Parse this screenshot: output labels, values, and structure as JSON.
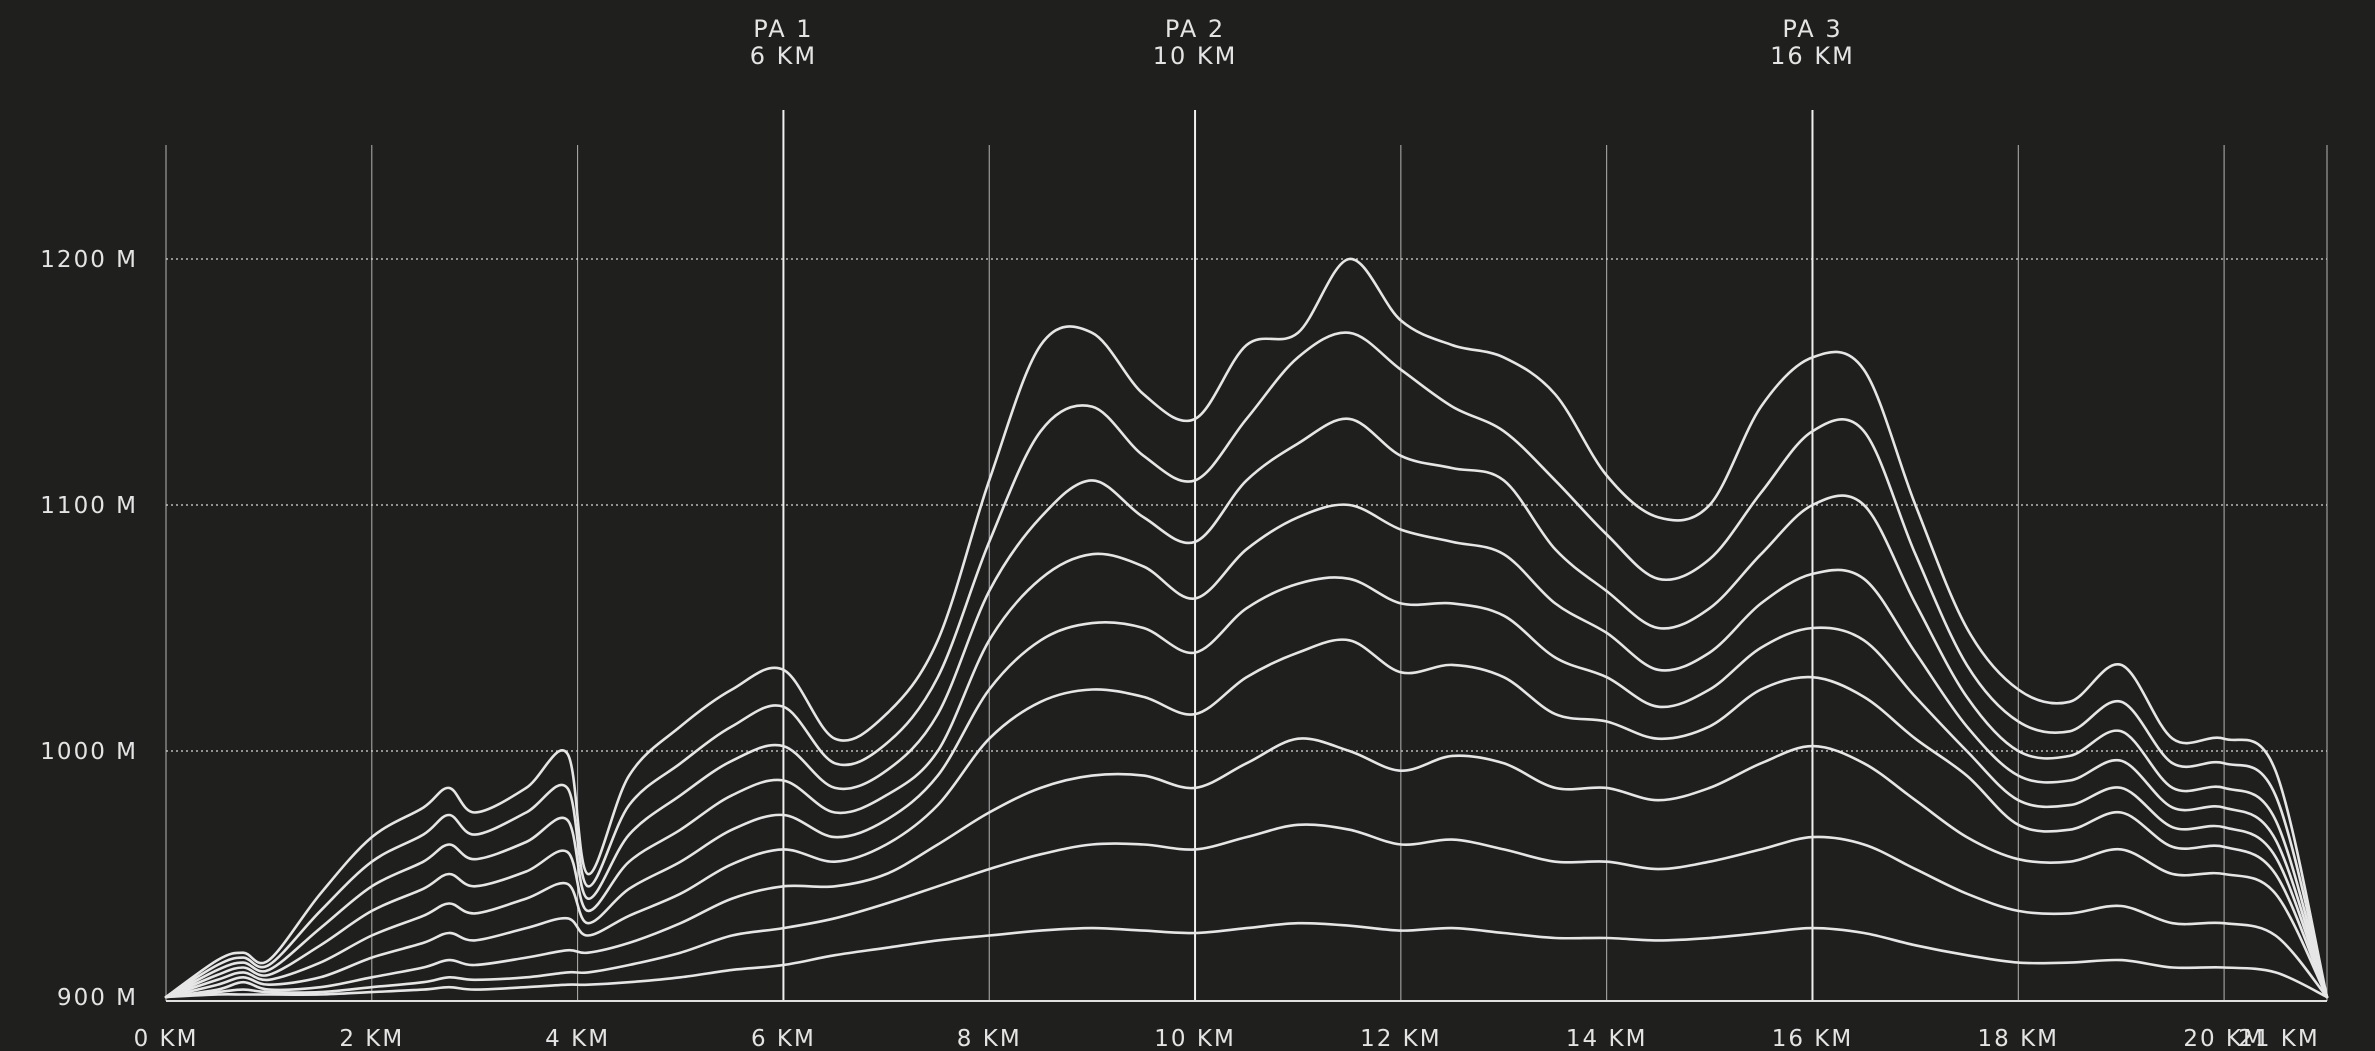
{
  "chart_data": {
    "type": "line",
    "title": "",
    "xlabel": "",
    "ylabel": "",
    "xlim": [
      0,
      21
    ],
    "ylim": [
      900,
      1250
    ],
    "x_ticks": [
      {
        "value": 0,
        "label": "0 KM"
      },
      {
        "value": 2,
        "label": "2 KM"
      },
      {
        "value": 4,
        "label": "4 KM"
      },
      {
        "value": 6,
        "label": "6 KM"
      },
      {
        "value": 8,
        "label": "8 KM"
      },
      {
        "value": 10,
        "label": "10 KM"
      },
      {
        "value": 12,
        "label": "12 KM"
      },
      {
        "value": 14,
        "label": "14 KM"
      },
      {
        "value": 16,
        "label": "16 KM"
      },
      {
        "value": 18,
        "label": "18 KM"
      },
      {
        "value": 20,
        "label": "20 KM"
      },
      {
        "value": 21,
        "label": "21 KM"
      }
    ],
    "y_ticks": [
      {
        "value": 900,
        "label": "900 M"
      },
      {
        "value": 1000,
        "label": "1000 M"
      },
      {
        "value": 1100,
        "label": "1100 M"
      },
      {
        "value": 1200,
        "label": "1200 M"
      }
    ],
    "grid": {
      "vertical": true,
      "horizontal_dotted": true
    },
    "markers": [
      {
        "x": 6,
        "name": "PA 1",
        "distance": "6 KM"
      },
      {
        "x": 10,
        "name": "PA 2",
        "distance": "10 KM"
      },
      {
        "x": 16,
        "name": "PA 3",
        "distance": "16 KM"
      }
    ],
    "x": [
      0,
      0.5,
      0.75,
      1,
      1.5,
      2,
      2.5,
      2.75,
      3,
      3.5,
      3.9,
      4.1,
      4.5,
      5,
      5.5,
      6,
      6.5,
      7,
      7.5,
      8,
      8.5,
      9,
      9.5,
      10,
      10.5,
      11,
      11.5,
      12,
      12.5,
      13,
      13.5,
      14,
      14.5,
      15,
      15.5,
      16,
      16.5,
      17,
      17.5,
      18,
      18.5,
      19,
      19.5,
      20,
      20.5,
      21
    ],
    "series": [
      {
        "values": [
          900,
          915,
          918,
          915,
          942,
          965,
          977,
          985,
          975,
          985,
          999,
          950,
          990,
          1010,
          1025,
          1033,
          1005,
          1015,
          1045,
          1110,
          1165,
          1170,
          1145,
          1135,
          1165,
          1170,
          1200,
          1175,
          1165,
          1160,
          1145,
          1112,
          1095,
          1100,
          1140,
          1160,
          1155,
          1100,
          1050,
          1025,
          1020,
          1035,
          1005,
          1005,
          992,
          900
        ]
      },
      {
        "values": [
          900,
          913,
          916,
          913,
          935,
          955,
          966,
          974,
          966,
          975,
          985,
          945,
          978,
          995,
          1010,
          1018,
          995,
          1003,
          1030,
          1085,
          1130,
          1140,
          1120,
          1110,
          1135,
          1160,
          1170,
          1155,
          1140,
          1130,
          1110,
          1088,
          1070,
          1078,
          1105,
          1130,
          1130,
          1080,
          1035,
          1012,
          1008,
          1020,
          995,
          995,
          982,
          900
        ]
      },
      {
        "values": [
          900,
          911,
          914,
          911,
          928,
          945,
          955,
          962,
          956,
          963,
          972,
          940,
          966,
          982,
          996,
          1002,
          985,
          992,
          1015,
          1065,
          1095,
          1110,
          1095,
          1085,
          1110,
          1125,
          1135,
          1120,
          1115,
          1110,
          1082,
          1065,
          1050,
          1058,
          1080,
          1100,
          1100,
          1060,
          1022,
          1000,
          998,
          1008,
          985,
          985,
          972,
          900
        ]
      },
      {
        "values": [
          900,
          909,
          912,
          909,
          921,
          935,
          944,
          950,
          945,
          951,
          959,
          935,
          955,
          968,
          982,
          988,
          975,
          982,
          1000,
          1045,
          1070,
          1080,
          1075,
          1062,
          1082,
          1095,
          1100,
          1090,
          1085,
          1080,
          1060,
          1048,
          1033,
          1040,
          1060,
          1072,
          1070,
          1040,
          1010,
          990,
          988,
          996,
          977,
          977,
          964,
          900
        ]
      },
      {
        "values": [
          900,
          907,
          910,
          907,
          914,
          925,
          933,
          938,
          934,
          940,
          946,
          930,
          944,
          955,
          968,
          974,
          965,
          972,
          990,
          1025,
          1045,
          1052,
          1050,
          1040,
          1058,
          1068,
          1070,
          1060,
          1060,
          1055,
          1038,
          1030,
          1018,
          1025,
          1042,
          1050,
          1045,
          1022,
          1000,
          980,
          978,
          985,
          969,
          969,
          957,
          900
        ]
      },
      {
        "values": [
          900,
          905,
          908,
          905,
          908,
          916,
          922,
          926,
          923,
          928,
          932,
          925,
          933,
          942,
          954,
          960,
          955,
          962,
          978,
          1005,
          1020,
          1025,
          1022,
          1015,
          1030,
          1040,
          1045,
          1032,
          1035,
          1030,
          1015,
          1012,
          1005,
          1010,
          1025,
          1030,
          1022,
          1005,
          990,
          970,
          968,
          975,
          961,
          961,
          950,
          900
        ]
      },
      {
        "values": [
          900,
          903,
          906,
          903,
          904,
          908,
          912,
          915,
          913,
          916,
          919,
          918,
          922,
          930,
          940,
          945,
          945,
          950,
          962,
          975,
          985,
          990,
          990,
          985,
          995,
          1005,
          1000,
          992,
          998,
          995,
          985,
          985,
          980,
          985,
          995,
          1002,
          995,
          980,
          965,
          956,
          955,
          960,
          950,
          950,
          942,
          900
        ]
      },
      {
        "values": [
          900,
          902,
          903,
          902,
          902,
          904,
          906,
          908,
          907,
          908,
          910,
          910,
          913,
          918,
          925,
          928,
          932,
          938,
          945,
          952,
          958,
          962,
          962,
          960,
          965,
          970,
          968,
          962,
          964,
          960,
          955,
          955,
          952,
          955,
          960,
          965,
          962,
          952,
          942,
          935,
          934,
          937,
          930,
          930,
          925,
          900
        ]
      },
      {
        "values": [
          900,
          901,
          901,
          901,
          901,
          902,
          903,
          904,
          903,
          904,
          905,
          905,
          906,
          908,
          911,
          913,
          917,
          920,
          923,
          925,
          927,
          928,
          927,
          926,
          928,
          930,
          929,
          927,
          928,
          926,
          924,
          924,
          923,
          924,
          926,
          928,
          926,
          921,
          917,
          914,
          914,
          915,
          912,
          912,
          910,
          900
        ]
      }
    ]
  }
}
